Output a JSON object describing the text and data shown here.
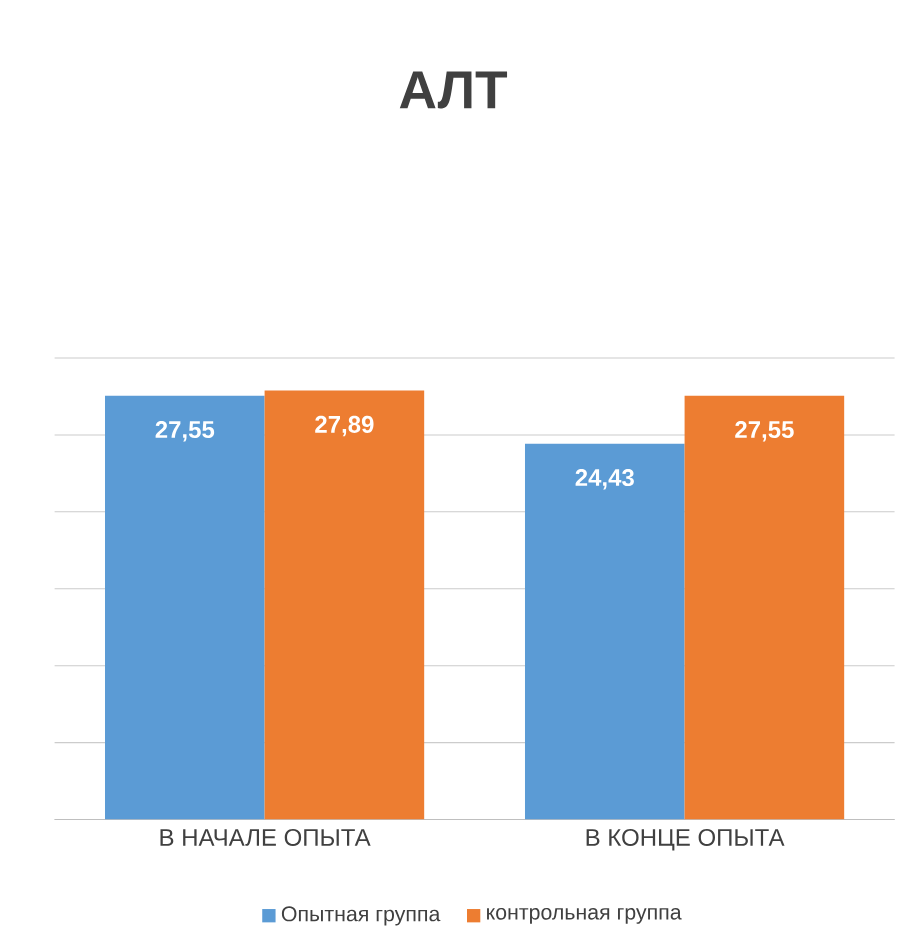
{
  "chart_data": {
    "type": "bar",
    "title": "АЛТ",
    "categories": [
      "В НАЧАЛЕ ОПЫТА",
      "В КОНЦЕ ОПЫТА"
    ],
    "series": [
      {
        "name": "Опытная группа",
        "color": "#5b9bd5",
        "values": [
          27.55,
          24.43
        ],
        "value_labels": [
          "27,55",
          "24,43"
        ]
      },
      {
        "name": "контрольная группа",
        "color": "#ed7d31",
        "values": [
          27.89,
          27.55
        ],
        "value_labels": [
          "27,89",
          "27,55"
        ]
      }
    ],
    "tick_labels": "x",
    "grid": "y",
    "legend": "bottom"
  }
}
